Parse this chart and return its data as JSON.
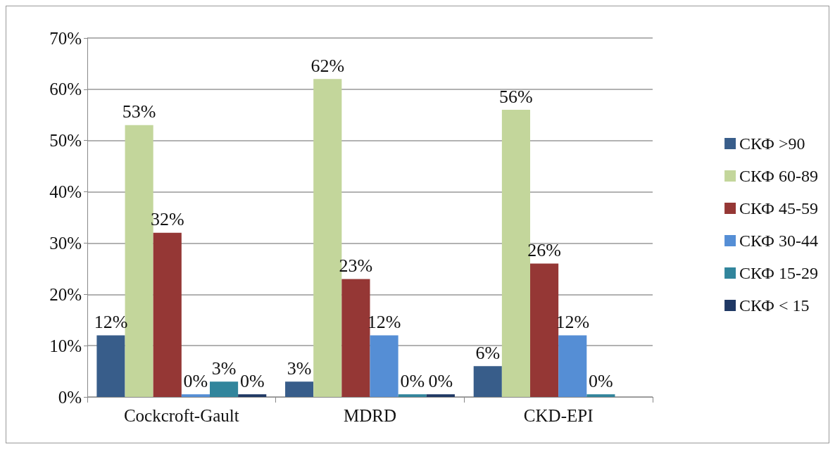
{
  "chart_data": {
    "type": "bar",
    "categories": [
      "Cockcroft-Gault",
      "MDRD",
      "CKD-EPI"
    ],
    "series": [
      {
        "name": "СКФ >90",
        "color": "#385d8a",
        "values": [
          12,
          3,
          6
        ],
        "value_labels": [
          "12%",
          "3%",
          "6%"
        ]
      },
      {
        "name": "СКФ 60-89",
        "color": "#c3d69b",
        "values": [
          53,
          62,
          56
        ],
        "value_labels": [
          "53%",
          "62%",
          "56%"
        ]
      },
      {
        "name": "СКФ 45-59",
        "color": "#953735",
        "values": [
          32,
          23,
          26
        ],
        "value_labels": [
          "32%",
          "23%",
          "26%"
        ]
      },
      {
        "name": "СКФ 30-44",
        "color": "#558ed5",
        "values": [
          0.5,
          12,
          12
        ],
        "value_labels": [
          "0%",
          "12%",
          "12%"
        ]
      },
      {
        "name": "СКФ 15-29",
        "color": "#31859c",
        "values": [
          3,
          0.5,
          0.5
        ],
        "value_labels": [
          "3%",
          "0%",
          "0%"
        ]
      },
      {
        "name": "СКФ < 15",
        "color": "#1f3864",
        "values": [
          0.5,
          0.5,
          null
        ],
        "value_labels": [
          "0%",
          "0%",
          null
        ]
      }
    ],
    "ylim": [
      0,
      70
    ],
    "yticks": [
      {
        "value": 0,
        "label": "0%"
      },
      {
        "value": 10,
        "label": "10%"
      },
      {
        "value": 20,
        "label": "20%"
      },
      {
        "value": 30,
        "label": "30%"
      },
      {
        "value": 40,
        "label": "40%"
      },
      {
        "value": 50,
        "label": "50%"
      },
      {
        "value": 60,
        "label": "60%"
      },
      {
        "value": 70,
        "label": "70%"
      }
    ],
    "grid": "y",
    "legend": "right"
  }
}
